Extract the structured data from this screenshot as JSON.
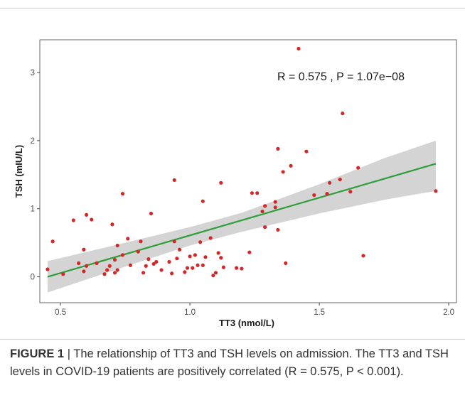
{
  "chart_data": {
    "type": "scatter",
    "xlabel": "TT3 (nmol/L)",
    "ylabel": "TSH (mIU/L)",
    "xlim": [
      0.42,
      2.03
    ],
    "ylim": [
      -0.38,
      3.48
    ],
    "x_ticks": [
      0.5,
      1.0,
      1.5,
      2.0
    ],
    "x_tick_labels": [
      "0.5",
      "1.0",
      "1.5",
      "2.0"
    ],
    "y_ticks": [
      0,
      1,
      2,
      3
    ],
    "y_tick_labels": [
      "0",
      "1",
      "2",
      "3"
    ],
    "grid": false,
    "annotation": "R = 0.575 , P =  1.07e−08",
    "point_color": "#d62728",
    "fit_line_color": "#2e9e3a",
    "ci_band_color": "#d4d4d4",
    "fit_line": {
      "x": [
        0.45,
        1.95
      ],
      "y": [
        0.0,
        1.66
      ]
    },
    "ci_band": {
      "x": [
        0.45,
        0.75,
        1.0,
        1.2,
        1.5,
        1.75,
        1.95
      ],
      "lower": [
        -0.23,
        0.15,
        0.46,
        0.66,
        0.93,
        1.13,
        1.26
      ],
      "upper": [
        0.23,
        0.5,
        0.73,
        0.94,
        1.36,
        1.74,
        2.0
      ]
    },
    "points": [
      [
        0.45,
        0.11
      ],
      [
        0.47,
        0.52
      ],
      [
        0.51,
        0.04
      ],
      [
        0.55,
        0.83
      ],
      [
        0.57,
        0.2
      ],
      [
        0.59,
        0.4
      ],
      [
        0.59,
        0.08
      ],
      [
        0.6,
        0.16
      ],
      [
        0.6,
        0.91
      ],
      [
        0.62,
        0.84
      ],
      [
        0.64,
        0.2
      ],
      [
        0.67,
        0.04
      ],
      [
        0.68,
        0.1
      ],
      [
        0.69,
        0.16
      ],
      [
        0.7,
        0.77
      ],
      [
        0.71,
        0.25
      ],
      [
        0.71,
        0.06
      ],
      [
        0.72,
        0.46
      ],
      [
        0.72,
        0.1
      ],
      [
        0.74,
        0.32
      ],
      [
        0.74,
        1.22
      ],
      [
        0.76,
        0.56
      ],
      [
        0.77,
        0.17
      ],
      [
        0.8,
        0.37
      ],
      [
        0.81,
        0.52
      ],
      [
        0.82,
        0.06
      ],
      [
        0.83,
        0.16
      ],
      [
        0.84,
        0.26
      ],
      [
        0.85,
        0.93
      ],
      [
        0.86,
        0.19
      ],
      [
        0.87,
        0.22
      ],
      [
        0.89,
        0.1
      ],
      [
        0.92,
        0.22
      ],
      [
        0.93,
        0.05
      ],
      [
        0.94,
        1.42
      ],
      [
        0.94,
        0.52
      ],
      [
        0.95,
        0.27
      ],
      [
        0.96,
        0.4
      ],
      [
        0.98,
        0.07
      ],
      [
        0.99,
        0.13
      ],
      [
        1.0,
        0.3
      ],
      [
        1.01,
        0.13
      ],
      [
        1.02,
        0.32
      ],
      [
        1.03,
        0.17
      ],
      [
        1.04,
        0.51
      ],
      [
        1.05,
        0.17
      ],
      [
        1.05,
        1.11
      ],
      [
        1.06,
        0.29
      ],
      [
        1.08,
        0.57
      ],
      [
        1.09,
        0.02
      ],
      [
        1.1,
        0.06
      ],
      [
        1.11,
        0.35
      ],
      [
        1.12,
        1.38
      ],
      [
        1.12,
        0.28
      ],
      [
        1.13,
        0.14
      ],
      [
        1.18,
        0.13
      ],
      [
        1.2,
        0.12
      ],
      [
        1.23,
        0.36
      ],
      [
        1.24,
        1.23
      ],
      [
        1.26,
        1.23
      ],
      [
        1.28,
        0.96
      ],
      [
        1.29,
        1.04
      ],
      [
        1.29,
        0.73
      ],
      [
        1.33,
        1.1
      ],
      [
        1.33,
        1.02
      ],
      [
        1.34,
        1.88
      ],
      [
        1.34,
        0.69
      ],
      [
        1.36,
        1.54
      ],
      [
        1.37,
        0.2
      ],
      [
        1.39,
        1.63
      ],
      [
        1.42,
        3.35
      ],
      [
        1.45,
        1.84
      ],
      [
        1.48,
        1.2
      ],
      [
        1.53,
        1.22
      ],
      [
        1.54,
        1.38
      ],
      [
        1.58,
        1.43
      ],
      [
        1.59,
        2.4
      ],
      [
        1.62,
        1.25
      ],
      [
        1.65,
        1.6
      ],
      [
        1.67,
        0.31
      ],
      [
        1.95,
        1.26
      ]
    ]
  },
  "caption": {
    "label": "FIGURE 1",
    "separator": " | ",
    "text": "The relationship of TT3 and TSH levels on admission. The TT3 and TSH levels in COVID-19 patients are positively correlated (R = 0.575, P < 0.001)."
  }
}
